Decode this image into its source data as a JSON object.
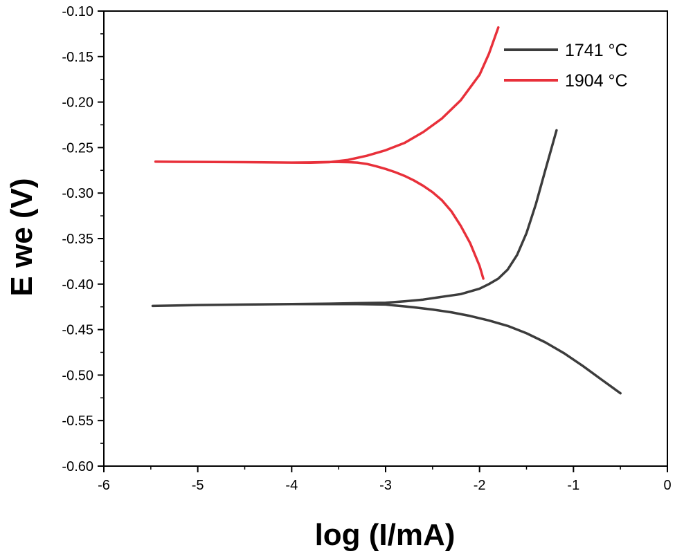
{
  "chart_data": {
    "type": "line",
    "title": "",
    "xlabel": "log (I/mA)",
    "ylabel": "E we (V)",
    "xlim": [
      -6,
      0
    ],
    "ylim": [
      -0.6,
      -0.1
    ],
    "x_ticks": [
      -6,
      -5,
      -4,
      -3,
      -2,
      -1,
      0
    ],
    "x_tick_labels": [
      "-6",
      "-5",
      "-4",
      "-3",
      "-2",
      "-1",
      "0"
    ],
    "y_ticks": [
      -0.6,
      -0.55,
      -0.5,
      -0.45,
      -0.4,
      -0.35,
      -0.3,
      -0.25,
      -0.2,
      -0.15,
      -0.1
    ],
    "y_tick_labels": [
      "-0.60",
      "-0.55",
      "-0.50",
      "-0.45",
      "-0.40",
      "-0.35",
      "-0.30",
      "-0.25",
      "-0.20",
      "-0.15",
      "-0.10"
    ],
    "grid": false,
    "legend_position": "top-right",
    "series": [
      {
        "name": "1741 °C",
        "color": "#3c3c3c",
        "x": [
          -0.5,
          -0.7,
          -0.9,
          -1.1,
          -1.3,
          -1.5,
          -1.7,
          -1.9,
          -2.1,
          -2.3,
          -2.5,
          -2.7,
          -2.8,
          -2.9,
          -3.0,
          -3.3,
          -3.6,
          -4.0,
          -4.5,
          -5.0,
          -5.48,
          -5.0,
          -4.5,
          -4.0,
          -3.6,
          -3.3,
          -3.0,
          -2.8,
          -2.6,
          -2.4,
          -2.2,
          -2.0,
          -1.9,
          -1.8,
          -1.7,
          -1.6,
          -1.5,
          -1.4,
          -1.3,
          -1.18
        ],
        "y": [
          -0.52,
          -0.505,
          -0.49,
          -0.476,
          -0.464,
          -0.454,
          -0.446,
          -0.44,
          -0.435,
          -0.431,
          -0.428,
          -0.4255,
          -0.4245,
          -0.4235,
          -0.4225,
          -0.422,
          -0.422,
          -0.422,
          -0.4225,
          -0.423,
          -0.424,
          -0.423,
          -0.4225,
          -0.422,
          -0.4215,
          -0.421,
          -0.4205,
          -0.419,
          -0.417,
          -0.414,
          -0.411,
          -0.405,
          -0.4,
          -0.394,
          -0.384,
          -0.368,
          -0.344,
          -0.312,
          -0.275,
          -0.231
        ]
      },
      {
        "name": "1904 °C",
        "color": "#e8303a",
        "x": [
          -1.96,
          -2.0,
          -2.1,
          -2.2,
          -2.3,
          -2.4,
          -2.5,
          -2.6,
          -2.7,
          -2.8,
          -2.9,
          -3.0,
          -3.1,
          -3.2,
          -3.3,
          -3.4,
          -3.5,
          -3.6,
          -3.8,
          -4.0,
          -4.5,
          -5.0,
          -5.45,
          -5.0,
          -4.5,
          -4.0,
          -3.8,
          -3.6,
          -3.4,
          -3.2,
          -3.0,
          -2.8,
          -2.6,
          -2.4,
          -2.2,
          -2.0,
          -1.9,
          -1.8
        ],
        "y": [
          -0.394,
          -0.38,
          -0.355,
          -0.336,
          -0.32,
          -0.308,
          -0.299,
          -0.292,
          -0.286,
          -0.281,
          -0.277,
          -0.2735,
          -0.2705,
          -0.268,
          -0.2665,
          -0.266,
          -0.2658,
          -0.2658,
          -0.2663,
          -0.2665,
          -0.266,
          -0.2657,
          -0.2655,
          -0.2657,
          -0.266,
          -0.2665,
          -0.2666,
          -0.266,
          -0.2635,
          -0.259,
          -0.253,
          -0.245,
          -0.233,
          -0.218,
          -0.198,
          -0.17,
          -0.147,
          -0.118
        ]
      }
    ]
  }
}
